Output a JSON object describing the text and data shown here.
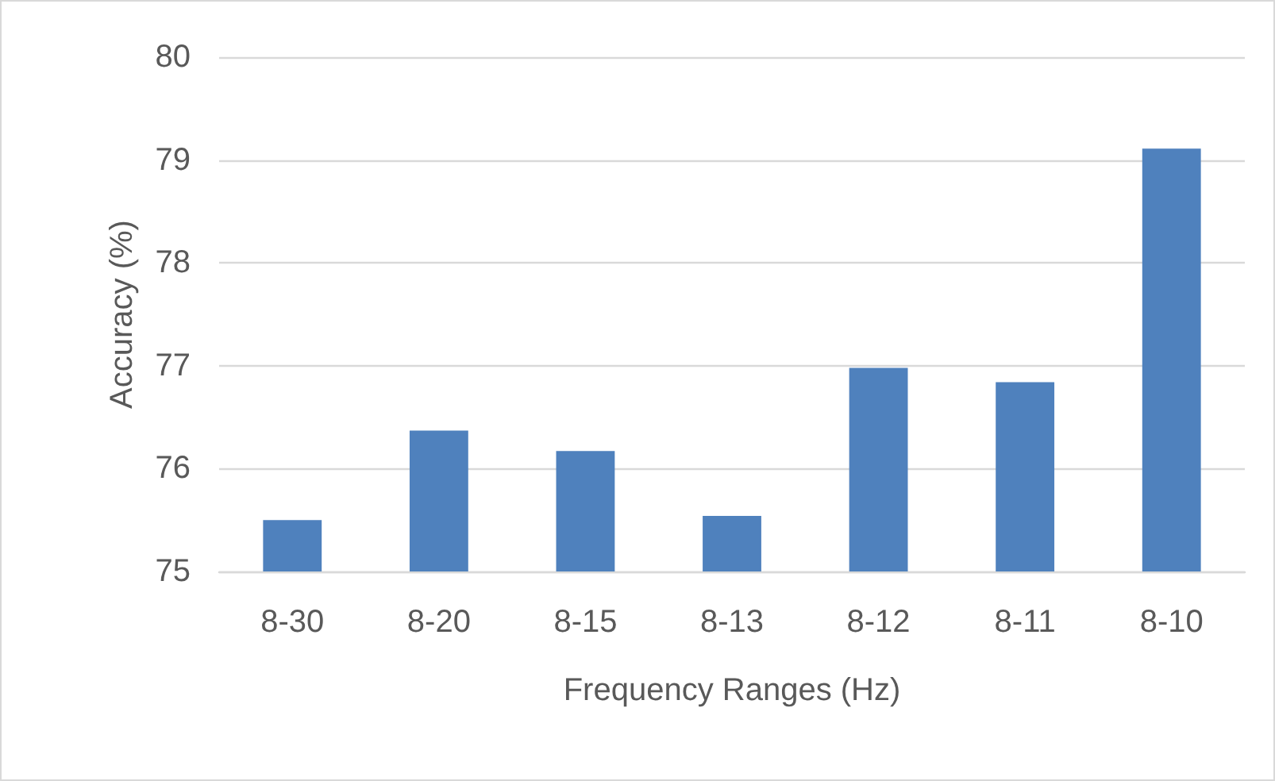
{
  "chart_data": {
    "type": "bar",
    "xlabel": "Frequency Ranges (Hz)",
    "ylabel": "Accuracy (%)",
    "categories": [
      "8-30",
      "8-20",
      "8-15",
      "8-13",
      "8-12",
      "8-11",
      "8-10"
    ],
    "values": [
      75.5,
      76.37,
      76.17,
      75.54,
      76.98,
      76.84,
      79.11
    ],
    "color": "#4f81bd",
    "ylim": [
      75,
      80
    ],
    "yticks": [
      75,
      76,
      77,
      78,
      79,
      80
    ],
    "grid": "y"
  }
}
